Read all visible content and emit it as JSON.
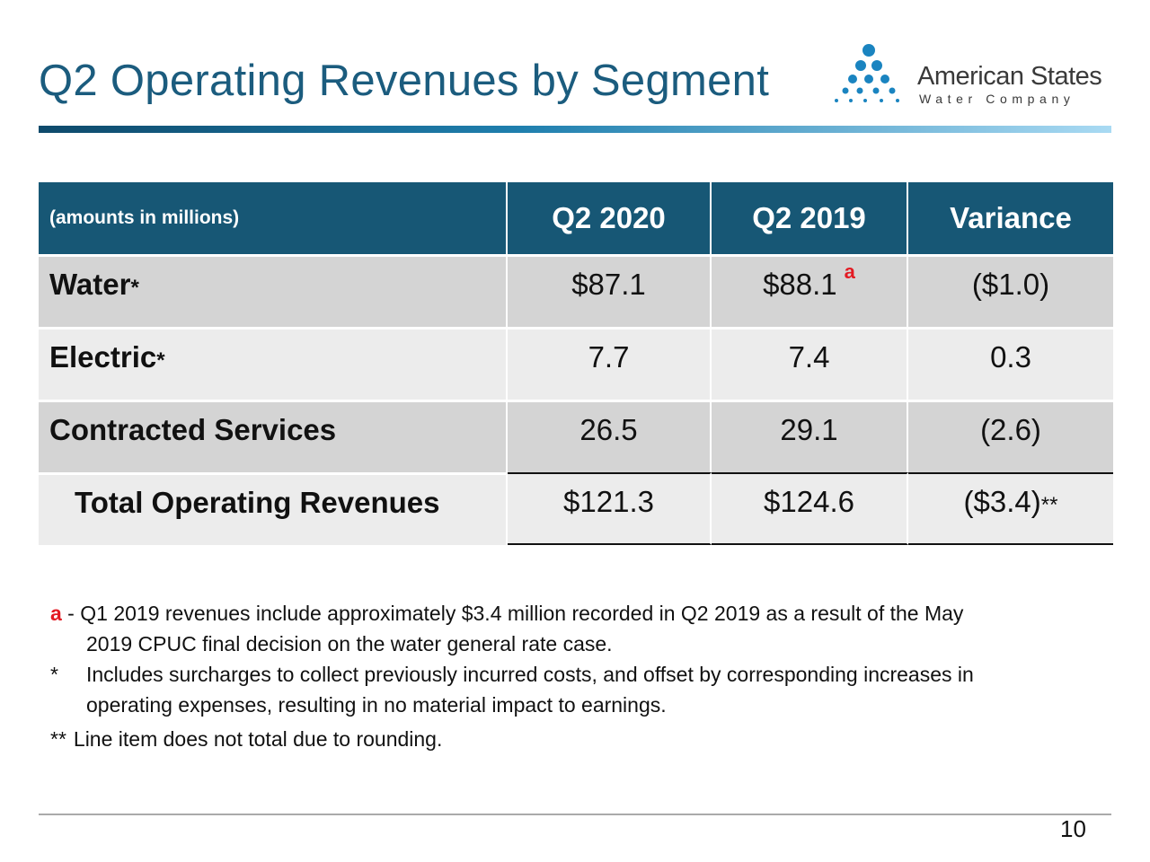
{
  "title": "Q2 Operating Revenues by Segment",
  "logo": {
    "name": "American States",
    "subtitle": "Water Company",
    "color": "#1a84c0"
  },
  "colors": {
    "accent": "#175775",
    "title": "#1b5c7e",
    "footnote_marker": "#e31b23"
  },
  "table": {
    "header": [
      "(amounts in millions)",
      "Q2 2020",
      "Q2 2019",
      "Variance"
    ],
    "rows": [
      {
        "label": "Water",
        "mark": "*",
        "q2_2020": "$87.1",
        "q2_2019": "$88.1",
        "q2_2019_note": "a",
        "variance": "($1.0)"
      },
      {
        "label": "Electric",
        "mark": "*",
        "q2_2020": "7.7",
        "q2_2019": "7.4",
        "variance": "0.3"
      },
      {
        "label": "Contracted Services",
        "mark": "",
        "q2_2020": "26.5",
        "q2_2019": "29.1",
        "variance": "(2.6)"
      }
    ],
    "total": {
      "label": "Total Operating Revenues",
      "q2_2020": "$121.3",
      "q2_2019": "$124.6",
      "variance": "($3.4)",
      "mark": "**"
    }
  },
  "notes": [
    {
      "marker": "a",
      "sep": " - ",
      "line1": "Q1 2019 revenues include approximately $3.4 million recorded in Q2 2019 as a result of the May",
      "line2": "2019 CPUC final decision on the water general rate case."
    },
    {
      "marker": "*",
      "line1": "Includes surcharges to collect previously incurred costs, and offset by corresponding increases in",
      "line2": "operating expenses, resulting in no material impact to earnings."
    },
    {
      "marker": "**",
      "line1": "Line item does not total due to rounding."
    }
  ],
  "page_number": "10"
}
